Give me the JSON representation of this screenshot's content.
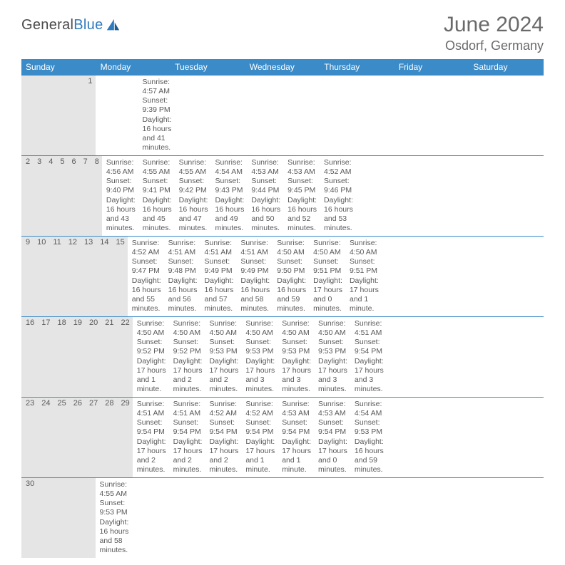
{
  "brand": {
    "part1": "General",
    "part2": "Blue"
  },
  "title": "June 2024",
  "location": "Osdorf, Germany",
  "header_bg": "#3b8bc8",
  "daynum_bg": "#e5e5e5",
  "text_color": "#5a5a5a",
  "day_names": [
    "Sunday",
    "Monday",
    "Tuesday",
    "Wednesday",
    "Thursday",
    "Friday",
    "Saturday"
  ],
  "weeks": [
    {
      "nums": [
        "",
        "",
        "",
        "",
        "",
        "",
        "1"
      ],
      "cells": [
        null,
        null,
        null,
        null,
        null,
        null,
        {
          "sr": "Sunrise: 4:57 AM",
          "ss": "Sunset: 9:39 PM",
          "d1": "Daylight: 16 hours",
          "d2": "and 41 minutes."
        }
      ]
    },
    {
      "nums": [
        "2",
        "3",
        "4",
        "5",
        "6",
        "7",
        "8"
      ],
      "cells": [
        {
          "sr": "Sunrise: 4:56 AM",
          "ss": "Sunset: 9:40 PM",
          "d1": "Daylight: 16 hours",
          "d2": "and 43 minutes."
        },
        {
          "sr": "Sunrise: 4:55 AM",
          "ss": "Sunset: 9:41 PM",
          "d1": "Daylight: 16 hours",
          "d2": "and 45 minutes."
        },
        {
          "sr": "Sunrise: 4:55 AM",
          "ss": "Sunset: 9:42 PM",
          "d1": "Daylight: 16 hours",
          "d2": "and 47 minutes."
        },
        {
          "sr": "Sunrise: 4:54 AM",
          "ss": "Sunset: 9:43 PM",
          "d1": "Daylight: 16 hours",
          "d2": "and 49 minutes."
        },
        {
          "sr": "Sunrise: 4:53 AM",
          "ss": "Sunset: 9:44 PM",
          "d1": "Daylight: 16 hours",
          "d2": "and 50 minutes."
        },
        {
          "sr": "Sunrise: 4:53 AM",
          "ss": "Sunset: 9:45 PM",
          "d1": "Daylight: 16 hours",
          "d2": "and 52 minutes."
        },
        {
          "sr": "Sunrise: 4:52 AM",
          "ss": "Sunset: 9:46 PM",
          "d1": "Daylight: 16 hours",
          "d2": "and 53 minutes."
        }
      ]
    },
    {
      "nums": [
        "9",
        "10",
        "11",
        "12",
        "13",
        "14",
        "15"
      ],
      "cells": [
        {
          "sr": "Sunrise: 4:52 AM",
          "ss": "Sunset: 9:47 PM",
          "d1": "Daylight: 16 hours",
          "d2": "and 55 minutes."
        },
        {
          "sr": "Sunrise: 4:51 AM",
          "ss": "Sunset: 9:48 PM",
          "d1": "Daylight: 16 hours",
          "d2": "and 56 minutes."
        },
        {
          "sr": "Sunrise: 4:51 AM",
          "ss": "Sunset: 9:49 PM",
          "d1": "Daylight: 16 hours",
          "d2": "and 57 minutes."
        },
        {
          "sr": "Sunrise: 4:51 AM",
          "ss": "Sunset: 9:49 PM",
          "d1": "Daylight: 16 hours",
          "d2": "and 58 minutes."
        },
        {
          "sr": "Sunrise: 4:50 AM",
          "ss": "Sunset: 9:50 PM",
          "d1": "Daylight: 16 hours",
          "d2": "and 59 minutes."
        },
        {
          "sr": "Sunrise: 4:50 AM",
          "ss": "Sunset: 9:51 PM",
          "d1": "Daylight: 17 hours",
          "d2": "and 0 minutes."
        },
        {
          "sr": "Sunrise: 4:50 AM",
          "ss": "Sunset: 9:51 PM",
          "d1": "Daylight: 17 hours",
          "d2": "and 1 minute."
        }
      ]
    },
    {
      "nums": [
        "16",
        "17",
        "18",
        "19",
        "20",
        "21",
        "22"
      ],
      "cells": [
        {
          "sr": "Sunrise: 4:50 AM",
          "ss": "Sunset: 9:52 PM",
          "d1": "Daylight: 17 hours",
          "d2": "and 1 minute."
        },
        {
          "sr": "Sunrise: 4:50 AM",
          "ss": "Sunset: 9:52 PM",
          "d1": "Daylight: 17 hours",
          "d2": "and 2 minutes."
        },
        {
          "sr": "Sunrise: 4:50 AM",
          "ss": "Sunset: 9:53 PM",
          "d1": "Daylight: 17 hours",
          "d2": "and 2 minutes."
        },
        {
          "sr": "Sunrise: 4:50 AM",
          "ss": "Sunset: 9:53 PM",
          "d1": "Daylight: 17 hours",
          "d2": "and 3 minutes."
        },
        {
          "sr": "Sunrise: 4:50 AM",
          "ss": "Sunset: 9:53 PM",
          "d1": "Daylight: 17 hours",
          "d2": "and 3 minutes."
        },
        {
          "sr": "Sunrise: 4:50 AM",
          "ss": "Sunset: 9:53 PM",
          "d1": "Daylight: 17 hours",
          "d2": "and 3 minutes."
        },
        {
          "sr": "Sunrise: 4:51 AM",
          "ss": "Sunset: 9:54 PM",
          "d1": "Daylight: 17 hours",
          "d2": "and 3 minutes."
        }
      ]
    },
    {
      "nums": [
        "23",
        "24",
        "25",
        "26",
        "27",
        "28",
        "29"
      ],
      "cells": [
        {
          "sr": "Sunrise: 4:51 AM",
          "ss": "Sunset: 9:54 PM",
          "d1": "Daylight: 17 hours",
          "d2": "and 2 minutes."
        },
        {
          "sr": "Sunrise: 4:51 AM",
          "ss": "Sunset: 9:54 PM",
          "d1": "Daylight: 17 hours",
          "d2": "and 2 minutes."
        },
        {
          "sr": "Sunrise: 4:52 AM",
          "ss": "Sunset: 9:54 PM",
          "d1": "Daylight: 17 hours",
          "d2": "and 2 minutes."
        },
        {
          "sr": "Sunrise: 4:52 AM",
          "ss": "Sunset: 9:54 PM",
          "d1": "Daylight: 17 hours",
          "d2": "and 1 minute."
        },
        {
          "sr": "Sunrise: 4:53 AM",
          "ss": "Sunset: 9:54 PM",
          "d1": "Daylight: 17 hours",
          "d2": "and 1 minute."
        },
        {
          "sr": "Sunrise: 4:53 AM",
          "ss": "Sunset: 9:54 PM",
          "d1": "Daylight: 17 hours",
          "d2": "and 0 minutes."
        },
        {
          "sr": "Sunrise: 4:54 AM",
          "ss": "Sunset: 9:53 PM",
          "d1": "Daylight: 16 hours",
          "d2": "and 59 minutes."
        }
      ]
    },
    {
      "nums": [
        "30",
        "",
        "",
        "",
        "",
        "",
        ""
      ],
      "cells": [
        {
          "sr": "Sunrise: 4:55 AM",
          "ss": "Sunset: 9:53 PM",
          "d1": "Daylight: 16 hours",
          "d2": "and 58 minutes."
        },
        null,
        null,
        null,
        null,
        null,
        null
      ]
    }
  ]
}
